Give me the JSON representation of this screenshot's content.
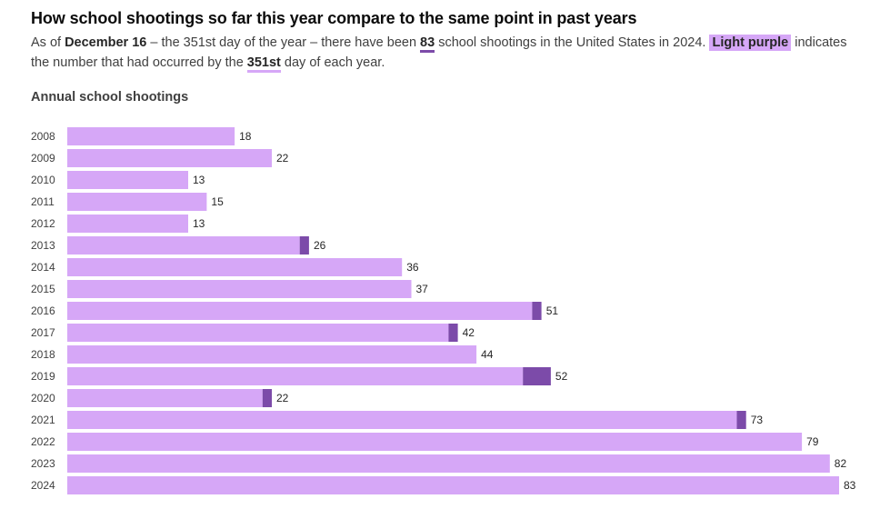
{
  "header": {
    "title": "How school shootings so far this year compare to the same point in past years",
    "subtitle": {
      "p1": "As of ",
      "date": "December 16",
      "p2": " – the 351st day of the year – there have been ",
      "count": "83",
      "p3": " school shootings in the United States in 2024. ",
      "highlight": "Light purple",
      "p4": " indicates the number that had occurred by the ",
      "day": "351st",
      "p5": " day of each year."
    }
  },
  "chart_label": "Annual school shootings",
  "colors": {
    "light_purple": "#d6a7f7",
    "dark_purple": "#7c4ba9",
    "label_text": "#262626",
    "year_text": "#404040"
  },
  "chart_data": {
    "type": "bar",
    "orientation": "horizontal",
    "stacked": true,
    "title": "Annual school shootings",
    "categories": [
      "2008",
      "2009",
      "2010",
      "2011",
      "2012",
      "2013",
      "2014",
      "2015",
      "2016",
      "2017",
      "2018",
      "2019",
      "2020",
      "2021",
      "2022",
      "2023",
      "2024"
    ],
    "series": [
      {
        "values": [
          18,
          22,
          13,
          15,
          13,
          25,
          36,
          37,
          50,
          41,
          44,
          49,
          21,
          72,
          79,
          82,
          83
        ]
      },
      {
        "values": [
          0,
          0,
          0,
          0,
          0,
          1,
          0,
          0,
          1,
          1,
          0,
          3,
          1,
          1,
          0,
          0,
          0
        ]
      }
    ],
    "totals": [
      18,
      22,
      13,
      15,
      13,
      26,
      36,
      37,
      51,
      42,
      44,
      52,
      22,
      73,
      79,
      82,
      83
    ],
    "xlim": [
      0,
      83
    ],
    "grid": false,
    "legend": "none"
  }
}
